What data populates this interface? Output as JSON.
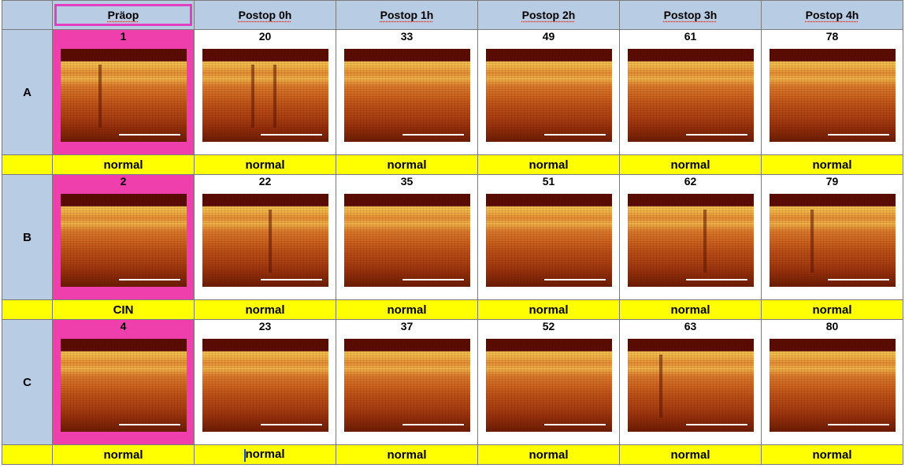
{
  "header": {
    "columns": [
      "Präop",
      "Postop 0h",
      "Postop 1h",
      "Postop 2h",
      "Postop 3h",
      "Postop 4h"
    ]
  },
  "rows": [
    {
      "label": "A",
      "ids": [
        "1",
        "20",
        "33",
        "49",
        "61",
        "78"
      ],
      "diagnoses": [
        "normal",
        "normal",
        "normal",
        "normal",
        "normal",
        "normal"
      ]
    },
    {
      "label": "B",
      "ids": [
        "2",
        "22",
        "35",
        "51",
        "62",
        "79"
      ],
      "diagnoses": [
        "CIN",
        "normal",
        "normal",
        "normal",
        "normal",
        "normal"
      ]
    },
    {
      "label": "C",
      "ids": [
        "4",
        "23",
        "37",
        "52",
        "63",
        "80"
      ],
      "diagnoses": [
        "normal",
        "normal",
        "normal",
        "normal",
        "normal",
        "normal"
      ]
    }
  ],
  "colors": {
    "header_bg": "#b8cce4",
    "preop_highlight": "#ee3fac",
    "diagnosis_bg": "#ffff00",
    "selection_border": "#e040c0",
    "text_cursor": "#1a4fd0"
  },
  "image_kind": "oct-scan-image"
}
